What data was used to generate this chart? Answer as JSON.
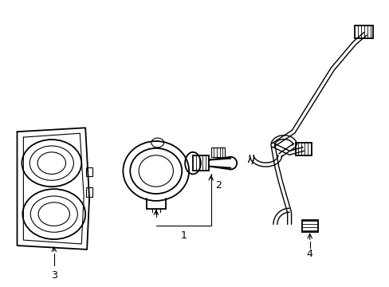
{
  "background_color": "#ffffff",
  "line_color": "#000000",
  "line_width": 1.3,
  "thin_lw": 0.8,
  "label_fontsize": 9,
  "figure_width": 4.89,
  "figure_height": 3.6
}
